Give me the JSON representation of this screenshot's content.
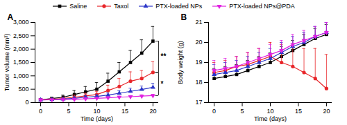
{
  "chart_data": [
    {
      "type": "line",
      "title": "A",
      "x_label": "Time (days)",
      "y_label": "Tumor volume (mm³)",
      "x": [
        0,
        2,
        4,
        6,
        8,
        10,
        12,
        14,
        16,
        18,
        20
      ],
      "xlim": [
        -1,
        21
      ],
      "xticks": [
        0,
        5,
        10,
        15,
        20
      ],
      "ylim": [
        0,
        3000
      ],
      "yticks": [
        0,
        500,
        {
          "value": 1000,
          "label": "1,000"
        },
        {
          "value": 1500,
          "label": "1,500"
        },
        {
          "value": 2000,
          "label": "2,000"
        },
        {
          "value": 2500,
          "label": "2,500"
        },
        {
          "value": 3000,
          "label": "3,000"
        }
      ],
      "legend": "top",
      "series": [
        {
          "name": "Saline",
          "color": "#000000",
          "marker": "square",
          "values": [
            100,
            150,
            200,
            300,
            400,
            500,
            800,
            1150,
            1500,
            1850,
            2300
          ],
          "errors": [
            30,
            50,
            80,
            150,
            200,
            250,
            300,
            350,
            450,
            500,
            550
          ]
        },
        {
          "name": "Taxol",
          "color": "#e8262a",
          "marker": "circle",
          "values": [
            100,
            120,
            150,
            200,
            250,
            300,
            450,
            600,
            800,
            900,
            1130
          ],
          "errors": [
            20,
            30,
            50,
            80,
            100,
            120,
            200,
            300,
            350,
            300,
            400
          ]
        },
        {
          "name": "PTX-loaded NPs",
          "color": "#2b35c8",
          "marker": "triangle",
          "values": [
            100,
            110,
            130,
            160,
            200,
            230,
            280,
            350,
            420,
            490,
            570
          ],
          "errors": [
            10,
            20,
            30,
            40,
            50,
            60,
            80,
            100,
            120,
            130,
            150
          ]
        },
        {
          "name": "PTX-loaded NPs@PDA",
          "color": "#e020e0",
          "marker": "triangle-down",
          "values": [
            100,
            105,
            110,
            120,
            140,
            160,
            180,
            200,
            220,
            240,
            260
          ],
          "errors": [
            5,
            10,
            10,
            20,
            20,
            30,
            30,
            40,
            40,
            50,
            50
          ]
        }
      ],
      "annotations": [
        {
          "text": "**",
          "between": [
            "Saline",
            "Taxol"
          ]
        },
        {
          "text": "*",
          "between": [
            "Taxol",
            "PTX-loaded NPs@PDA"
          ]
        }
      ]
    },
    {
      "type": "line",
      "title": "B",
      "x_label": "Time (days)",
      "y_label": "Body weight (g)",
      "x": [
        0,
        2,
        4,
        6,
        8,
        10,
        12,
        14,
        16,
        18,
        20
      ],
      "xlim": [
        -1,
        21
      ],
      "xticks": [
        0,
        5,
        10,
        15,
        20
      ],
      "ylim": [
        17,
        21
      ],
      "yticks": [
        17,
        18,
        19,
        20,
        21
      ],
      "series": [
        {
          "name": "Saline",
          "color": "#000000",
          "marker": "square",
          "values": [
            18.2,
            18.3,
            18.4,
            18.6,
            18.8,
            19.0,
            19.3,
            19.6,
            19.9,
            20.2,
            20.4
          ],
          "errors": [
            0.5,
            0.5,
            0.5,
            0.5,
            0.5,
            0.5,
            0.5,
            0.5,
            0.5,
            0.5,
            0.5
          ]
        },
        {
          "name": "Taxol",
          "color": "#e8262a",
          "marker": "circle",
          "values": [
            18.5,
            18.6,
            18.8,
            18.9,
            19.1,
            19.3,
            19.0,
            18.8,
            18.5,
            18.2,
            17.7
          ],
          "errors": [
            0.5,
            0.5,
            0.5,
            0.6,
            0.6,
            0.7,
            0.9,
            1.0,
            1.2,
            1.5,
            1.7
          ]
        },
        {
          "name": "PTX-loaded NPs",
          "color": "#2b35c8",
          "marker": "triangle",
          "values": [
            18.4,
            18.5,
            18.6,
            18.8,
            19.0,
            19.2,
            19.5,
            19.8,
            20.0,
            20.3,
            20.5
          ],
          "errors": [
            0.5,
            0.5,
            0.5,
            0.5,
            0.5,
            0.5,
            0.5,
            0.5,
            0.5,
            0.5,
            0.5
          ]
        },
        {
          "name": "PTX-loaded NPs@PDA",
          "color": "#e020e0",
          "marker": "triangle-down",
          "values": [
            18.6,
            18.7,
            18.8,
            19.0,
            19.2,
            19.4,
            19.6,
            19.9,
            20.1,
            20.3,
            20.5
          ],
          "errors": [
            0.5,
            0.5,
            0.5,
            0.5,
            0.5,
            0.5,
            0.5,
            0.5,
            0.5,
            0.5,
            0.5
          ]
        }
      ]
    }
  ]
}
